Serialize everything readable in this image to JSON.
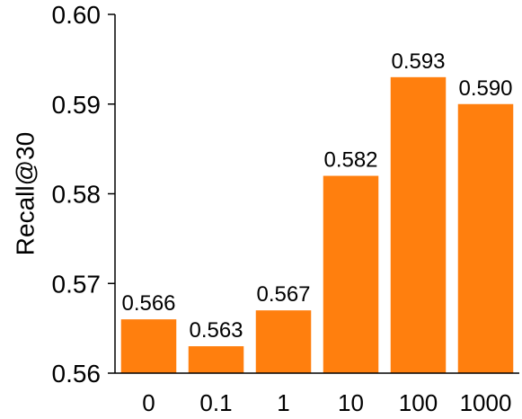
{
  "chart_data": {
    "type": "bar",
    "categories": [
      "0",
      "0.1",
      "1",
      "10",
      "100",
      "1000"
    ],
    "values": [
      0.566,
      0.563,
      0.567,
      0.582,
      0.593,
      0.59
    ],
    "data_labels": [
      "0.566",
      "0.563",
      "0.567",
      "0.582",
      "0.593",
      "0.590"
    ],
    "ylabel": "Recall@30",
    "xlabel": "",
    "ylim": [
      0.56,
      0.6
    ],
    "yticks": [
      0.56,
      0.57,
      0.58,
      0.59,
      0.6
    ],
    "ytick_labels": [
      "0.56",
      "0.57",
      "0.58",
      "0.59",
      "0.60"
    ],
    "grid": false,
    "legend": "none",
    "bar_color": "#FF7F0E"
  }
}
